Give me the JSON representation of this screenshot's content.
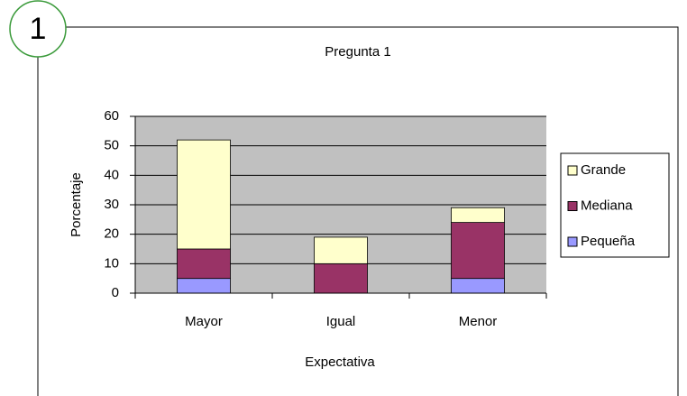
{
  "chart_data": {
    "type": "stacked_bar",
    "annotation": "1",
    "title": "Pregunta 1",
    "x_label": "Expectativa",
    "y_label": "Porcentaje",
    "categories": [
      "Mayor",
      "Igual",
      "Menor"
    ],
    "series": [
      {
        "name": "Pequeña",
        "color": "#9999ff",
        "values": [
          5,
          0,
          5
        ]
      },
      {
        "name": "Mediana",
        "color": "#993366",
        "values": [
          10,
          10,
          19
        ]
      },
      {
        "name": "Grande",
        "color": "#ffffcc",
        "values": [
          37,
          9,
          5
        ]
      }
    ],
    "ylim": [
      0,
      60
    ],
    "yticks": [
      0,
      10,
      20,
      30,
      40,
      50,
      60
    ],
    "grid": true,
    "legend": "right",
    "plot_background": "#c0c0c0"
  }
}
